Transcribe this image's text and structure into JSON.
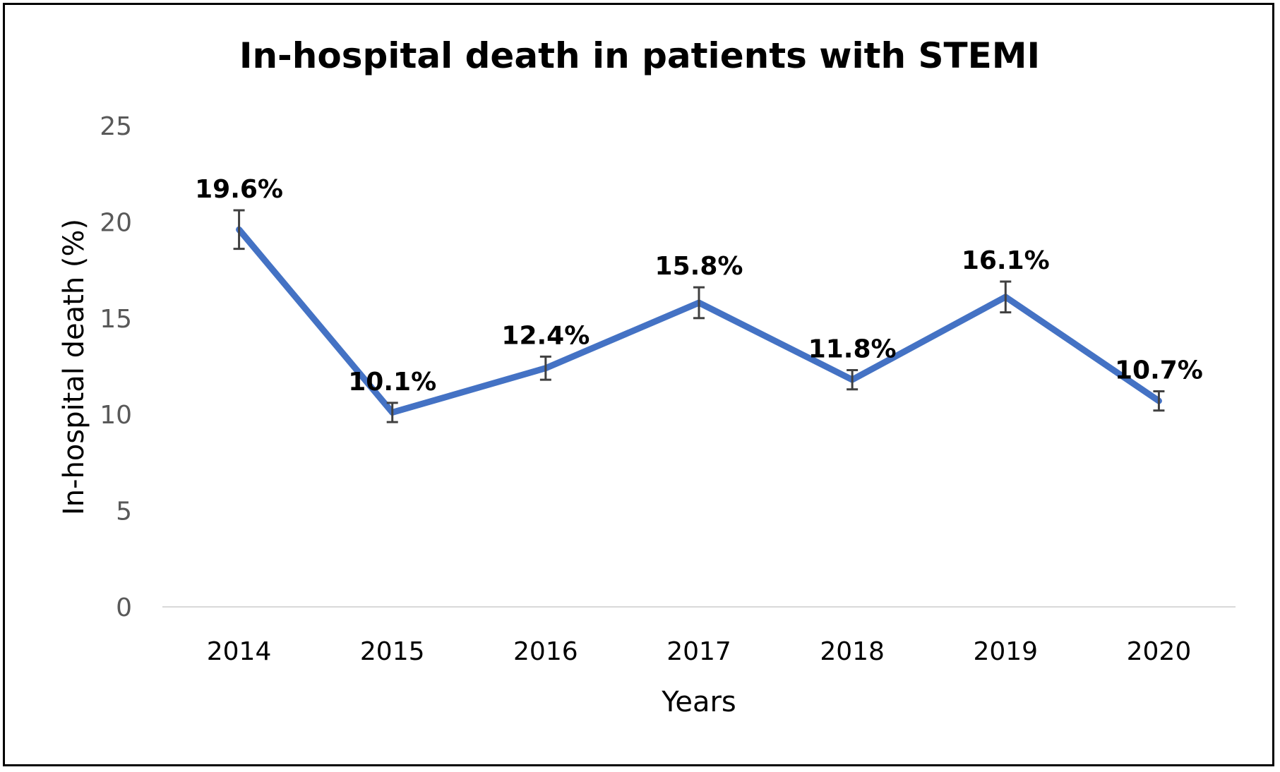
{
  "chart_data": {
    "type": "line",
    "title": "In-hospital death in patients with STEMI",
    "xlabel": "Years",
    "ylabel": "In-hospital death (%)",
    "categories": [
      "2014",
      "2015",
      "2016",
      "2017",
      "2018",
      "2019",
      "2020"
    ],
    "series": [
      {
        "values": [
          19.6,
          10.1,
          12.4,
          15.8,
          11.8,
          16.1,
          10.7
        ],
        "error": [
          1.0,
          0.5,
          0.6,
          0.8,
          0.5,
          0.8,
          0.5
        ],
        "data_labels": [
          "19.6%",
          "10.1%",
          "12.4%",
          "15.8%",
          "11.8%",
          "16.1%",
          "10.7%"
        ],
        "color": "#4472C4"
      }
    ],
    "ylim": [
      0,
      25
    ],
    "yticks": [
      "0",
      "5",
      "10",
      "15",
      "20",
      "25"
    ],
    "grid": false,
    "legend": "none",
    "axis_line_color": "#D9D9D9",
    "errorbar_color": "#404040"
  }
}
